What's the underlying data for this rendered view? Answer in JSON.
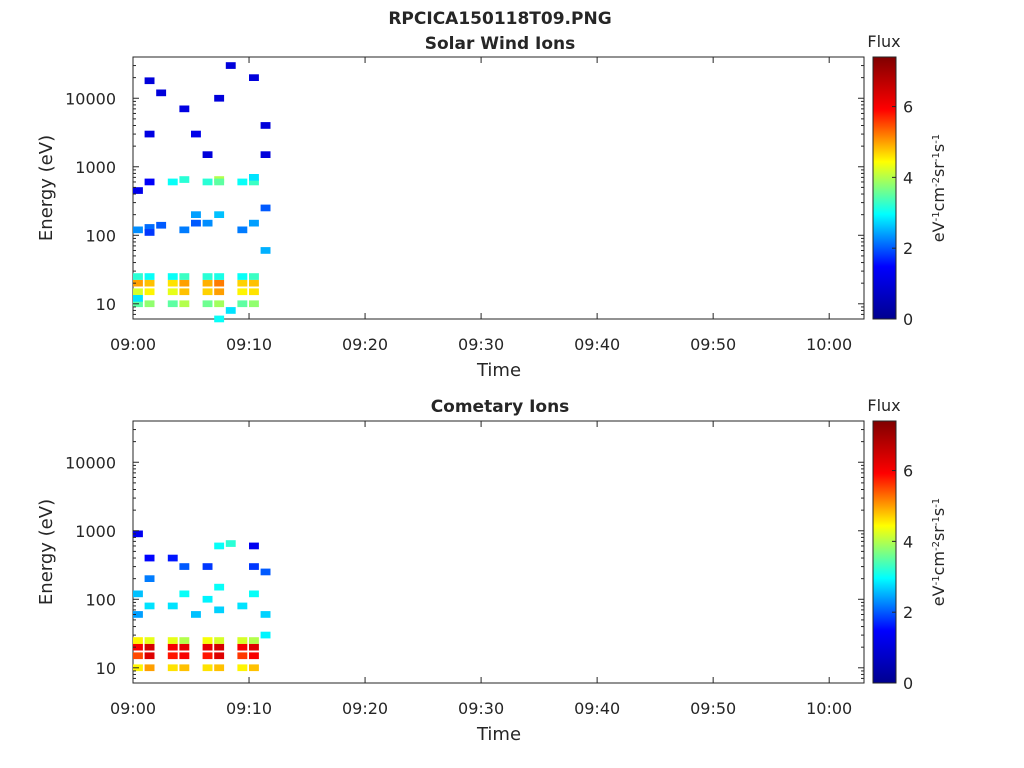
{
  "figure": {
    "title": "RPCICA150118T09.PNG",
    "colorbar_label": "Flux",
    "colorbar_units": "eV-1cm-2sr-1s-1",
    "colormap": [
      "#00008f",
      "#0000ff",
      "#00ffff",
      "#ffff00",
      "#ff0000",
      "#800000"
    ]
  },
  "chart_data": [
    {
      "type": "heatmap",
      "title": "Solar Wind Ions",
      "xlabel": "Time",
      "ylabel": "Energy (eV)",
      "x_ticks": [
        "09:00",
        "09:10",
        "09:20",
        "09:30",
        "09:40",
        "09:50",
        "10:00"
      ],
      "xlim": [
        "09:00",
        "10:03"
      ],
      "y_scale": "log",
      "y_ticks": [
        10,
        100,
        1000,
        10000
      ],
      "ylim": [
        6,
        40000
      ],
      "colorbar_ticks": [
        0,
        2,
        4,
        6
      ],
      "clim": [
        0,
        7.4
      ],
      "cells": [
        [
          "09:00",
          10,
          3.5
        ],
        [
          "09:00",
          15,
          4.2
        ],
        [
          "09:00",
          20,
          5.0
        ],
        [
          "09:00",
          25,
          3.2
        ],
        [
          "09:00",
          12,
          2.8
        ],
        [
          "09:01",
          10,
          3.8
        ],
        [
          "09:01",
          15,
          4.5
        ],
        [
          "09:01",
          20,
          4.8
        ],
        [
          "09:01",
          25,
          3.0
        ],
        [
          "09:00",
          120,
          2.3
        ],
        [
          "09:01",
          130,
          2.1
        ],
        [
          "09:01",
          110,
          1.8
        ],
        [
          "09:02",
          140,
          2.0
        ],
        [
          "09:00",
          450,
          1.2
        ],
        [
          "09:01",
          600,
          1.4
        ],
        [
          "09:01",
          3000,
          1.1
        ],
        [
          "09:01",
          18000,
          1.0
        ],
        [
          "09:02",
          12000,
          1.0
        ],
        [
          "09:03",
          10,
          3.5
        ],
        [
          "09:03",
          15,
          4.3
        ],
        [
          "09:03",
          20,
          4.6
        ],
        [
          "09:03",
          25,
          3.0
        ],
        [
          "09:04",
          10,
          4.0
        ],
        [
          "09:04",
          15,
          4.8
        ],
        [
          "09:04",
          20,
          5.0
        ],
        [
          "09:04",
          25,
          3.3
        ],
        [
          "09:03",
          600,
          3.0
        ],
        [
          "09:04",
          650,
          3.2
        ],
        [
          "09:04",
          120,
          2.2
        ],
        [
          "09:04",
          7000,
          1.1
        ],
        [
          "09:05",
          3000,
          1.2
        ],
        [
          "09:05",
          200,
          2.4
        ],
        [
          "09:05",
          150,
          2.0
        ],
        [
          "09:06",
          10,
          3.6
        ],
        [
          "09:06",
          15,
          4.7
        ],
        [
          "09:06",
          20,
          4.9
        ],
        [
          "09:06",
          25,
          3.2
        ],
        [
          "09:07",
          10,
          3.9
        ],
        [
          "09:07",
          15,
          5.0
        ],
        [
          "09:07",
          20,
          5.2
        ],
        [
          "09:07",
          25,
          3.1
        ],
        [
          "09:06",
          600,
          3.2
        ],
        [
          "09:07",
          650,
          4.0
        ],
        [
          "09:07",
          600,
          3.5
        ],
        [
          "09:06",
          150,
          2.3
        ],
        [
          "09:07",
          200,
          2.6
        ],
        [
          "09:06",
          1500,
          1.0
        ],
        [
          "09:07",
          10000,
          1.0
        ],
        [
          "09:08",
          30000,
          1.0
        ],
        [
          "09:07",
          6,
          3.0
        ],
        [
          "09:08",
          8,
          2.8
        ],
        [
          "09:09",
          10,
          3.5
        ],
        [
          "09:09",
          15,
          4.5
        ],
        [
          "09:09",
          20,
          4.7
        ],
        [
          "09:09",
          25,
          3.0
        ],
        [
          "09:10",
          10,
          3.8
        ],
        [
          "09:10",
          15,
          4.6
        ],
        [
          "09:10",
          20,
          4.8
        ],
        [
          "09:10",
          25,
          3.3
        ],
        [
          "09:09",
          600,
          3.0
        ],
        [
          "09:10",
          600,
          3.3
        ],
        [
          "09:10",
          700,
          2.8
        ],
        [
          "09:09",
          120,
          2.2
        ],
        [
          "09:10",
          150,
          2.4
        ],
        [
          "09:11",
          60,
          2.5
        ],
        [
          "09:11",
          250,
          2.0
        ],
        [
          "09:11",
          1500,
          1.0
        ],
        [
          "09:10",
          20000,
          1.0
        ],
        [
          "09:11",
          4000,
          1.0
        ]
      ]
    },
    {
      "type": "heatmap",
      "title": "Cometary Ions",
      "xlabel": "Time",
      "ylabel": "Energy (eV)",
      "x_ticks": [
        "09:00",
        "09:10",
        "09:20",
        "09:30",
        "09:40",
        "09:50",
        "10:00"
      ],
      "xlim": [
        "09:00",
        "10:03"
      ],
      "y_scale": "log",
      "y_ticks": [
        10,
        100,
        1000,
        10000
      ],
      "ylim": [
        6,
        40000
      ],
      "colorbar_ticks": [
        0,
        2,
        4,
        6
      ],
      "clim": [
        0,
        7.4
      ],
      "cells": [
        [
          "09:00",
          10,
          4.5
        ],
        [
          "09:00",
          15,
          5.5
        ],
        [
          "09:00",
          20,
          6.0
        ],
        [
          "09:00",
          25,
          4.5
        ],
        [
          "09:01",
          10,
          5.0
        ],
        [
          "09:01",
          15,
          6.3
        ],
        [
          "09:01",
          20,
          6.4
        ],
        [
          "09:01",
          25,
          4.3
        ],
        [
          "09:00",
          120,
          2.6
        ],
        [
          "09:01",
          80,
          2.8
        ],
        [
          "09:00",
          60,
          2.4
        ],
        [
          "09:01",
          200,
          2.2
        ],
        [
          "09:01",
          400,
          1.5
        ],
        [
          "09:00",
          900,
          1.3
        ],
        [
          "09:03",
          10,
          4.6
        ],
        [
          "09:03",
          15,
          5.8
        ],
        [
          "09:03",
          20,
          6.0
        ],
        [
          "09:03",
          25,
          4.3
        ],
        [
          "09:04",
          10,
          4.8
        ],
        [
          "09:04",
          15,
          6.0
        ],
        [
          "09:04",
          20,
          6.2
        ],
        [
          "09:04",
          25,
          4.0
        ],
        [
          "09:03",
          80,
          2.8
        ],
        [
          "09:04",
          120,
          3.0
        ],
        [
          "09:04",
          300,
          2.0
        ],
        [
          "09:03",
          400,
          1.6
        ],
        [
          "09:05",
          60,
          2.6
        ],
        [
          "09:06",
          10,
          4.6
        ],
        [
          "09:06",
          15,
          5.8
        ],
        [
          "09:06",
          20,
          6.2
        ],
        [
          "09:06",
          25,
          4.4
        ],
        [
          "09:07",
          10,
          4.8
        ],
        [
          "09:07",
          15,
          6.3
        ],
        [
          "09:07",
          20,
          6.4
        ],
        [
          "09:07",
          25,
          4.2
        ],
        [
          "09:06",
          100,
          2.9
        ],
        [
          "09:07",
          150,
          3.0
        ],
        [
          "09:07",
          70,
          2.7
        ],
        [
          "09:07",
          600,
          3.0
        ],
        [
          "09:08",
          650,
          3.2
        ],
        [
          "09:06",
          300,
          1.8
        ],
        [
          "09:09",
          10,
          4.5
        ],
        [
          "09:09",
          15,
          5.6
        ],
        [
          "09:09",
          20,
          6.0
        ],
        [
          "09:09",
          25,
          4.2
        ],
        [
          "09:10",
          10,
          4.8
        ],
        [
          "09:10",
          15,
          6.0
        ],
        [
          "09:10",
          20,
          6.3
        ],
        [
          "09:10",
          25,
          4.0
        ],
        [
          "09:09",
          80,
          2.8
        ],
        [
          "09:10",
          120,
          3.0
        ],
        [
          "09:10",
          600,
          1.3
        ],
        [
          "09:10",
          300,
          1.8
        ],
        [
          "09:11",
          60,
          2.7
        ],
        [
          "09:11",
          250,
          2.0
        ],
        [
          "09:11",
          30,
          2.9
        ]
      ]
    }
  ]
}
